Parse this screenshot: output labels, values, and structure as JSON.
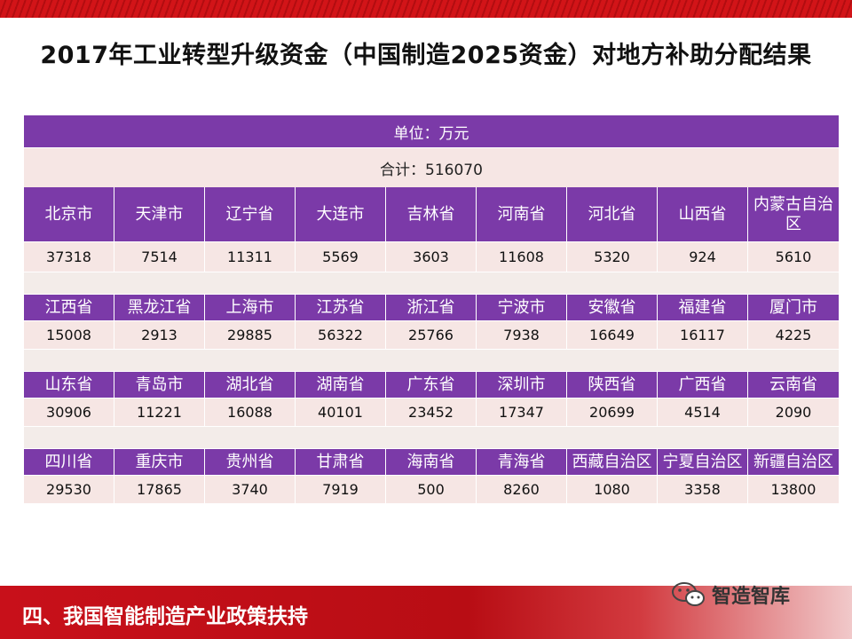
{
  "title": "2017年工业转型升级资金（中国制造2025资金）对地方补助分配结果",
  "table": {
    "unit_label": "单位：万元",
    "total_label": "合计：516070",
    "groups": [
      {
        "regions": [
          "北京市",
          "天津市",
          "辽宁省",
          "大连市",
          "吉林省",
          "河南省",
          "河北省",
          "山西省",
          "内蒙古自治区"
        ],
        "values": [
          "37318",
          "7514",
          "11311",
          "5569",
          "3603",
          "11608",
          "5320",
          "924",
          "5610"
        ]
      },
      {
        "regions": [
          "江西省",
          "黑龙江省",
          "上海市",
          "江苏省",
          "浙江省",
          "宁波市",
          "安徽省",
          "福建省",
          "厦门市"
        ],
        "values": [
          "15008",
          "2913",
          "29885",
          "56322",
          "25766",
          "7938",
          "16649",
          "16117",
          "4225"
        ]
      },
      {
        "regions": [
          "山东省",
          "青岛市",
          "湖北省",
          "湖南省",
          "广东省",
          "深圳市",
          "陕西省",
          "广西省",
          "云南省"
        ],
        "values": [
          "30906",
          "11221",
          "16088",
          "40101",
          "23452",
          "17347",
          "20699",
          "4514",
          "2090"
        ]
      },
      {
        "regions": [
          "四川省",
          "重庆市",
          "贵州省",
          "甘肃省",
          "海南省",
          "青海省",
          "西藏自治区",
          "宁夏自治区",
          "新疆自治区"
        ],
        "values": [
          "29530",
          "17865",
          "3740",
          "7919",
          "500",
          "8260",
          "1080",
          "3358",
          "13800"
        ]
      }
    ]
  },
  "footer": {
    "section_title": "四、我国智能制造产业政策扶持",
    "brand_name": "智造智库",
    "brand_icon": "wechat-icon"
  },
  "colors": {
    "header_purple": "#7b3aa8",
    "cell_pink": "#f6e6e4",
    "banner_red": "#c8101a"
  }
}
